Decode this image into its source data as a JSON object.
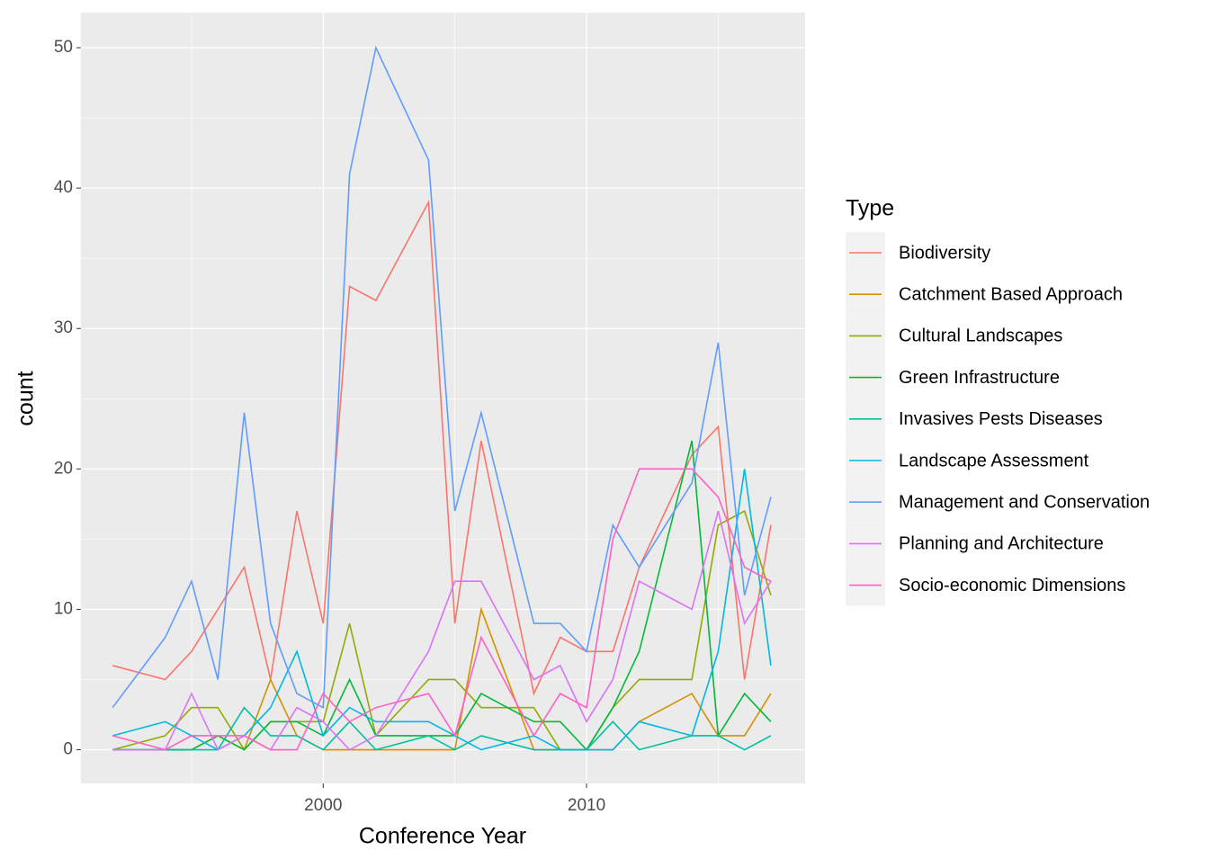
{
  "chart_data": {
    "type": "line",
    "x_label": "Conference Year",
    "y_label": "count",
    "legend_title": "Type",
    "legend_position": "right",
    "grid": true,
    "x": [
      1992,
      1994,
      1995,
      1996,
      1997,
      1998,
      1999,
      2000,
      2001,
      2002,
      2004,
      2005,
      2006,
      2008,
      2009,
      2010,
      2011,
      2012,
      2014,
      2015,
      2016,
      2017
    ],
    "xlim": [
      1990.8,
      2018.3
    ],
    "xticks": [
      2000,
      2010
    ],
    "ylim": [
      -2.4,
      52.5
    ],
    "yticks": [
      0,
      10,
      20,
      30,
      40,
      50
    ],
    "series": [
      {
        "name": "Biodiversity",
        "color": "#F8766D",
        "values": [
          6,
          5,
          7,
          10,
          13,
          5,
          17,
          9,
          33,
          32,
          39,
          9,
          22,
          4,
          8,
          7,
          7,
          13,
          21,
          23,
          5,
          16
        ]
      },
      {
        "name": "Catchment Based Approach",
        "color": "#D39200",
        "values": [
          0,
          0,
          0,
          1,
          0,
          5,
          1,
          0,
          0,
          0,
          0,
          0,
          10,
          0,
          0,
          0,
          0,
          2,
          4,
          1,
          1,
          4
        ]
      },
      {
        "name": "Cultural Landscapes",
        "color": "#93AA00",
        "values": [
          0,
          1,
          3,
          3,
          0,
          2,
          2,
          2,
          9,
          1,
          5,
          5,
          3,
          3,
          0,
          0,
          3,
          5,
          5,
          16,
          17,
          11
        ]
      },
      {
        "name": "Green Infrastructure",
        "color": "#00BA38",
        "values": [
          0,
          0,
          0,
          1,
          0,
          2,
          2,
          1,
          5,
          1,
          1,
          1,
          4,
          2,
          2,
          0,
          3,
          7,
          22,
          1,
          4,
          2
        ]
      },
      {
        "name": "Invasives Pests Diseases",
        "color": "#00C19F",
        "values": [
          0,
          0,
          0,
          0,
          3,
          1,
          1,
          0,
          2,
          0,
          1,
          0,
          1,
          0,
          0,
          0,
          2,
          0,
          1,
          1,
          0,
          1
        ]
      },
      {
        "name": "Landscape Assessment",
        "color": "#00B9E3",
        "values": [
          1,
          2,
          1,
          0,
          1,
          3,
          7,
          1,
          3,
          2,
          2,
          1,
          0,
          1,
          0,
          0,
          0,
          2,
          1,
          7,
          20,
          6
        ]
      },
      {
        "name": "Management and Conservation",
        "color": "#619CFF",
        "values": [
          3,
          8,
          12,
          5,
          24,
          9,
          4,
          3,
          41,
          50,
          42,
          17,
          24,
          9,
          9,
          7,
          16,
          13,
          19,
          29,
          11,
          18
        ]
      },
      {
        "name": "Planning and Architecture",
        "color": "#DB72FB",
        "values": [
          0,
          0,
          4,
          0,
          1,
          0,
          3,
          2,
          0,
          1,
          7,
          12,
          12,
          5,
          6,
          2,
          5,
          12,
          10,
          17,
          9,
          12
        ]
      },
      {
        "name": "Socio-economic Dimensions",
        "color": "#FF61C3",
        "values": [
          1,
          0,
          1,
          1,
          1,
          0,
          0,
          4,
          2,
          3,
          4,
          1,
          8,
          1,
          4,
          3,
          15,
          20,
          20,
          18,
          13,
          12
        ]
      }
    ]
  }
}
